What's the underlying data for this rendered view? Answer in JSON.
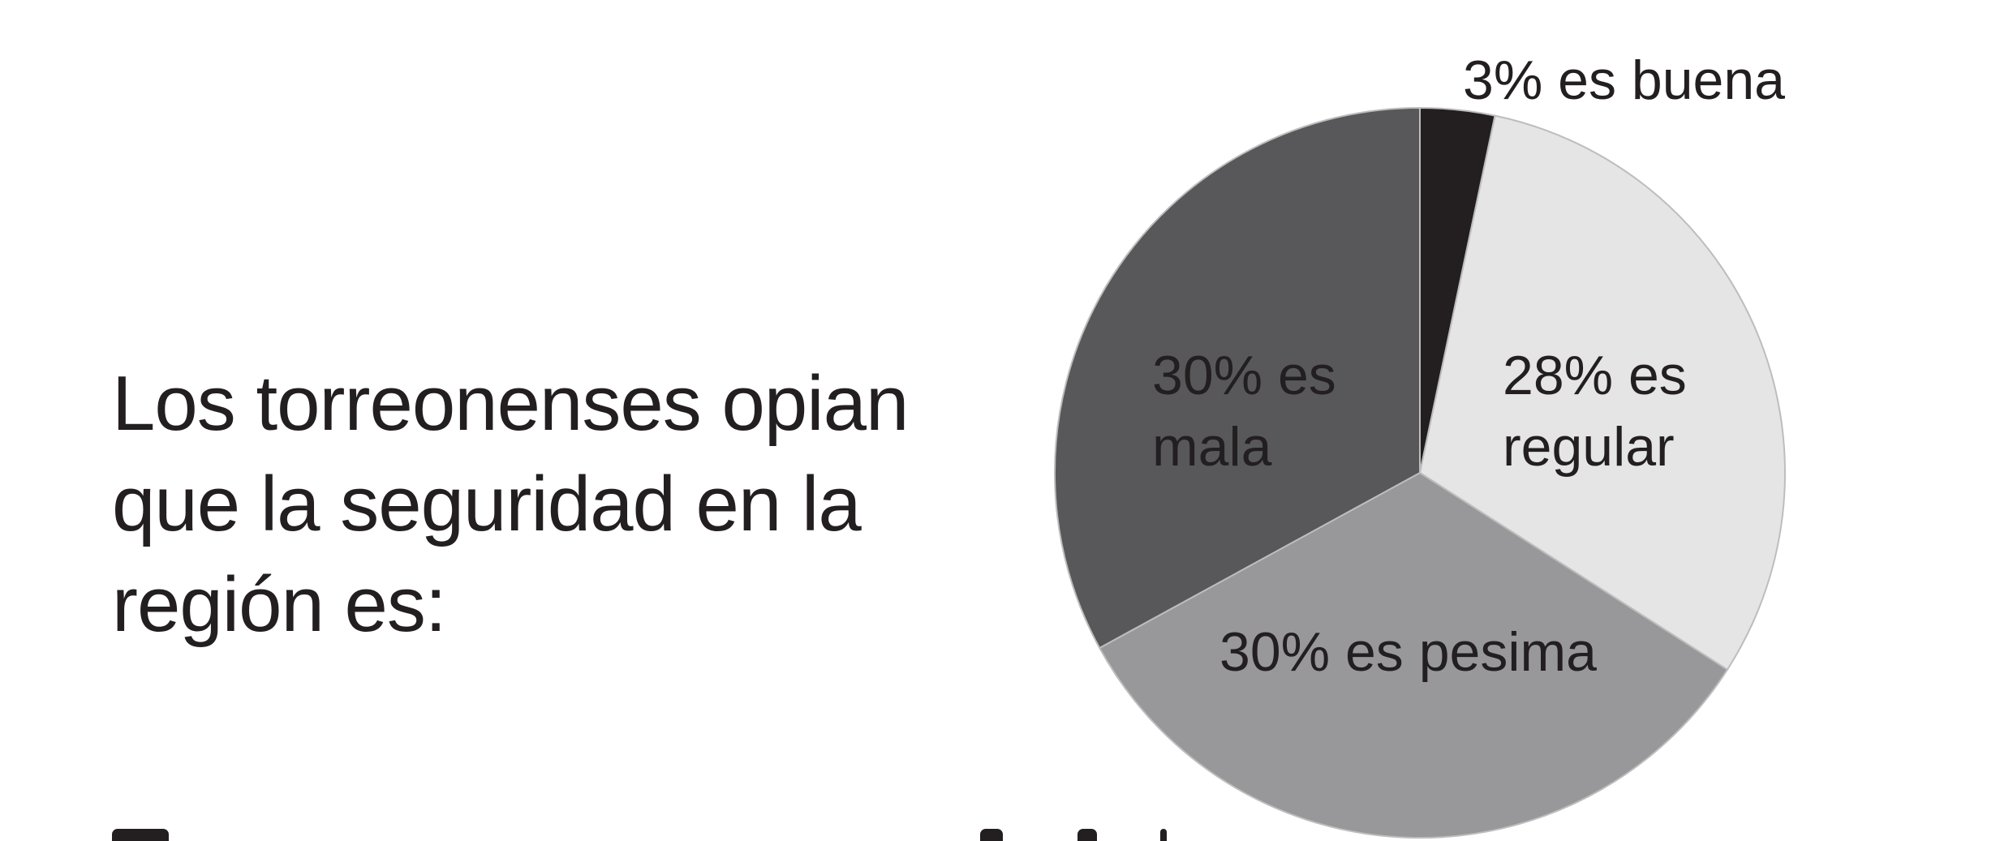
{
  "heading_lines": [
    "Los torreonenses opian",
    "que la seguridad en la",
    "región es:"
  ],
  "chart_data": {
    "type": "pie",
    "title": "",
    "start_angle_deg": 0,
    "direction": "clockwise",
    "slices": [
      {
        "category": "buena",
        "value": 3,
        "color": "#231f20",
        "label_lines": [
          "3% es buena"
        ]
      },
      {
        "category": "regular",
        "value": 28,
        "color": "#e5e5e5",
        "label_lines": [
          "28% es",
          "regular"
        ]
      },
      {
        "category": "pesima",
        "value": 30,
        "color": "#98989a",
        "label_lines": [
          "30% es pesima"
        ]
      },
      {
        "category": "mala",
        "value": 30,
        "color": "#58585a",
        "label_lines": [
          "30% es",
          "mala"
        ]
      }
    ],
    "legend": "none"
  }
}
